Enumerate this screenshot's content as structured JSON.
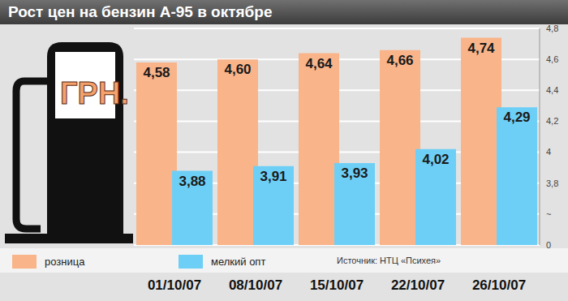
{
  "chart_data": {
    "type": "bar",
    "title": "Рост цен на бензин А-95 в октябре",
    "annotation": "ГРН.",
    "source": "Источник: НТЦ «Психея»",
    "categories": [
      "01/10/07",
      "08/10/07",
      "15/10/07",
      "22/10/07",
      "26/10/07"
    ],
    "series": [
      {
        "name": "розница",
        "color": "#f9b48a",
        "values": [
          4.58,
          4.6,
          4.64,
          4.66,
          4.74
        ],
        "value_labels": [
          "4,58",
          "4,60",
          "4,64",
          "4,66",
          "4,74"
        ]
      },
      {
        "name": "мелкий опт",
        "color": "#6dcff6",
        "values": [
          3.88,
          3.91,
          3.93,
          4.02,
          4.29
        ],
        "value_labels": [
          "3,88",
          "3,91",
          "3,93",
          "4,02",
          "4,29"
        ]
      }
    ],
    "ylim": [
      0,
      4.8
    ],
    "yticks": [
      0,
      {
        "value": 3.6,
        "label": "~"
      },
      {
        "value": 3.8,
        "label": "3,8"
      },
      4,
      {
        "value": 4.2,
        "label": "4,2"
      },
      {
        "value": 4.4,
        "label": "4,4"
      },
      {
        "value": 4.6,
        "label": "4,6"
      },
      {
        "value": 4.8,
        "label": "4,8"
      }
    ],
    "grid": true,
    "legend": "bottom left",
    "data_labels": true
  }
}
